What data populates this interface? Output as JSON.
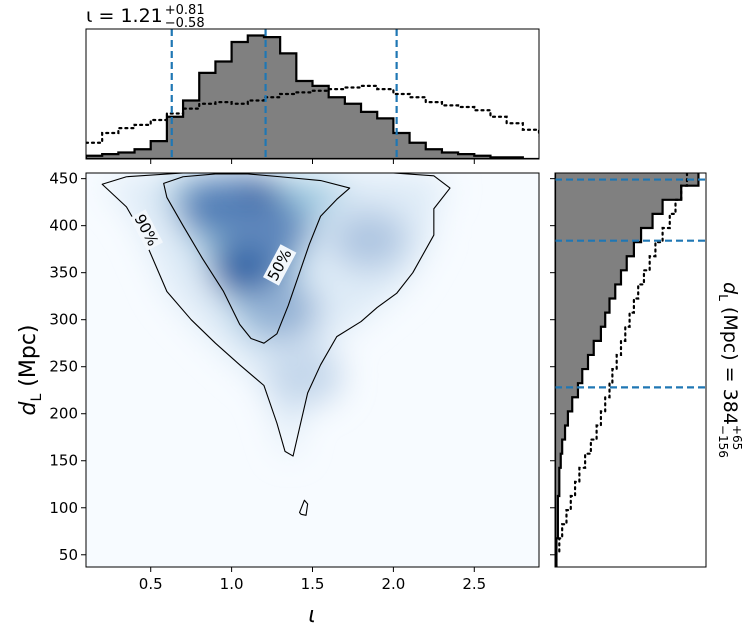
{
  "chart_data": [
    {
      "type": "heatmap",
      "panel": "joint",
      "xlabel": "ι",
      "ylabel_main": "d",
      "ylabel_sub": "L",
      "ylabel_unit": "(Mpc)",
      "xlim": [
        0.1,
        2.9
      ],
      "ylim": [
        37,
        456
      ],
      "xticks": [
        0.5,
        1.0,
        1.5,
        2.0,
        2.5
      ],
      "xtick_labels": [
        "0.5",
        "1.0",
        "1.5",
        "2.0",
        "2.5"
      ],
      "yticks": [
        50,
        100,
        150,
        200,
        250,
        300,
        350,
        400,
        450
      ],
      "ytick_labels": [
        "50",
        "100",
        "150",
        "200",
        "250",
        "300",
        "350",
        "400",
        "450"
      ],
      "colormap": "Blues",
      "density_peaks": [
        {
          "x": 1.1,
          "y": 420,
          "weight": 1.0
        },
        {
          "x": 0.9,
          "y": 420,
          "weight": 0.65
        },
        {
          "x": 1.1,
          "y": 355,
          "weight": 0.85
        },
        {
          "x": 1.25,
          "y": 395,
          "weight": 0.6
        },
        {
          "x": 1.3,
          "y": 310,
          "weight": 0.35
        },
        {
          "x": 1.85,
          "y": 385,
          "weight": 0.22
        },
        {
          "x": 1.45,
          "y": 240,
          "weight": 0.12
        }
      ],
      "contours": [
        {
          "label": "90%",
          "path": [
            [
              0.2,
              444
            ],
            [
              0.35,
              452
            ],
            [
              0.7,
              456
            ],
            [
              1.0,
              456
            ],
            [
              1.5,
              456
            ],
            [
              2.0,
              456
            ],
            [
              2.25,
              453
            ],
            [
              2.35,
              440
            ],
            [
              2.25,
              418
            ],
            [
              2.25,
              390
            ],
            [
              2.12,
              350
            ],
            [
              2.02,
              328
            ],
            [
              1.9,
              313
            ],
            [
              1.8,
              298
            ],
            [
              1.65,
              282
            ],
            [
              1.55,
              252
            ],
            [
              1.47,
              222
            ],
            [
              1.42,
              185
            ],
            [
              1.38,
              155
            ],
            [
              1.33,
              160
            ],
            [
              1.28,
              190
            ],
            [
              1.2,
              230
            ],
            [
              1.05,
              252
            ],
            [
              0.9,
              275
            ],
            [
              0.75,
              300
            ],
            [
              0.6,
              330
            ],
            [
              0.45,
              390
            ],
            [
              0.35,
              420
            ],
            [
              0.2,
              444
            ]
          ],
          "label_at": [
            0.47,
            395
          ]
        },
        {
          "label": "50%",
          "path": [
            [
              0.58,
              445
            ],
            [
              0.7,
              452
            ],
            [
              0.9,
              455
            ],
            [
              1.1,
              455
            ],
            [
              1.3,
              452
            ],
            [
              1.55,
              448
            ],
            [
              1.73,
              440
            ],
            [
              1.65,
              428
            ],
            [
              1.55,
              410
            ],
            [
              1.48,
              380
            ],
            [
              1.4,
              340
            ],
            [
              1.35,
              315
            ],
            [
              1.28,
              285
            ],
            [
              1.2,
              275
            ],
            [
              1.12,
              280
            ],
            [
              1.05,
              295
            ],
            [
              0.95,
              330
            ],
            [
              0.82,
              365
            ],
            [
              0.7,
              400
            ],
            [
              0.6,
              430
            ],
            [
              0.58,
              445
            ]
          ],
          "label_at": [
            1.3,
            358
          ]
        },
        {
          "label": "",
          "path": [
            [
              1.42,
              95
            ],
            [
              1.45,
              108
            ],
            [
              1.47,
              104
            ],
            [
              1.46,
              92
            ],
            [
              1.43,
              93
            ],
            [
              1.42,
              95
            ]
          ]
        }
      ]
    },
    {
      "type": "area",
      "panel": "top-marginal",
      "title_prefix": "ι = ",
      "title_value": "1.21",
      "title_sup": "+0.81",
      "title_sub": "−0.58",
      "x": [
        0.1,
        0.2,
        0.3,
        0.4,
        0.5,
        0.6,
        0.7,
        0.8,
        0.9,
        1.0,
        1.1,
        1.2,
        1.3,
        1.4,
        1.5,
        1.6,
        1.7,
        1.8,
        1.9,
        2.0,
        2.1,
        2.2,
        2.3,
        2.4,
        2.5,
        2.6,
        2.7,
        2.8,
        2.9
      ],
      "posterior": [
        2,
        3,
        4,
        6,
        11,
        26,
        36,
        53,
        60,
        72,
        76,
        75,
        65,
        48,
        45,
        38,
        34,
        29,
        25,
        16,
        10,
        6,
        4,
        3,
        2,
        1,
        1,
        0,
        0
      ],
      "prior": [
        10,
        16,
        19,
        21,
        24,
        28,
        31,
        34,
        35,
        34,
        36,
        38,
        40,
        41,
        42,
        43,
        44,
        45,
        43,
        40,
        38,
        35,
        33,
        32,
        30,
        26,
        22,
        18,
        14
      ],
      "quantiles": [
        0.63,
        1.21,
        2.02
      ]
    },
    {
      "type": "area",
      "panel": "right-marginal",
      "title_prefix": "",
      "title_main": "d",
      "title_sub_letter": "L",
      "title_unit": " (Mpc) = ",
      "title_value": "384",
      "title_sup": "+65",
      "title_sub": "−156",
      "y": [
        45,
        60,
        75,
        90,
        105,
        120,
        135,
        150,
        165,
        180,
        195,
        210,
        225,
        240,
        255,
        270,
        285,
        300,
        315,
        330,
        345,
        360,
        375,
        390,
        405,
        420,
        435,
        450
      ],
      "posterior": [
        1,
        1,
        2,
        2,
        2,
        3,
        3,
        4,
        5,
        7,
        9,
        12,
        16,
        19,
        23,
        27,
        32,
        35,
        38,
        42,
        46,
        50,
        55,
        60,
        68,
        75,
        88,
        100
      ],
      "prior": [
        1,
        3,
        5,
        8,
        11,
        14,
        17,
        21,
        25,
        29,
        32,
        35,
        38,
        40,
        43,
        46,
        49,
        52,
        55,
        58,
        62,
        66,
        70,
        75,
        80,
        84,
        88,
        92
      ],
      "quantiles": [
        228,
        384,
        449
      ]
    }
  ]
}
